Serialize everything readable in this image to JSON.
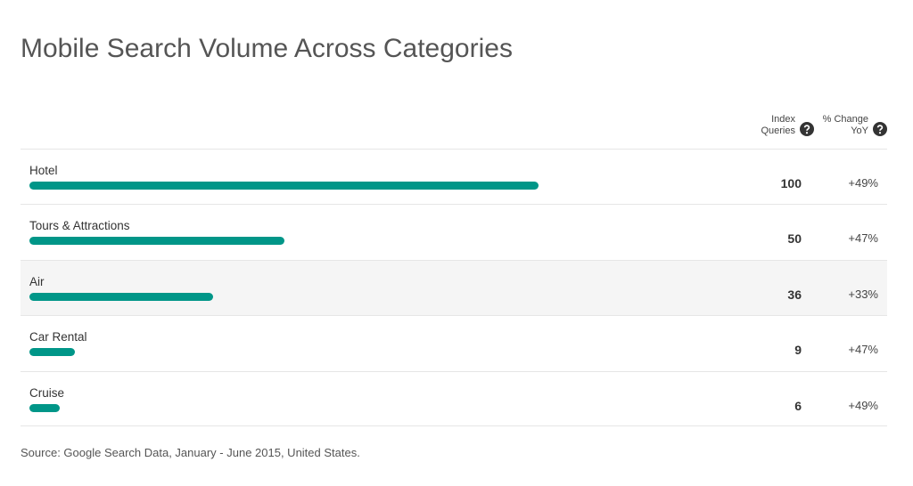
{
  "chart_data": {
    "type": "bar",
    "title": "Mobile Search Volume Across Categories",
    "categories": [
      "Hotel",
      "Tours & Attractions",
      "Air",
      "Car Rental",
      "Cruise"
    ],
    "series": [
      {
        "name": "Index Queries",
        "color": "#009688",
        "values": [
          100,
          50,
          36,
          9,
          6
        ]
      },
      {
        "name": "% Change YoY",
        "values": [
          49,
          47,
          33,
          47,
          49
        ],
        "value_labels": [
          "+49%",
          "+47%",
          "+33%",
          "+47%",
          "+49%"
        ]
      }
    ],
    "source": "Source: Google Search Data, January - June 2015, United States."
  }
}
